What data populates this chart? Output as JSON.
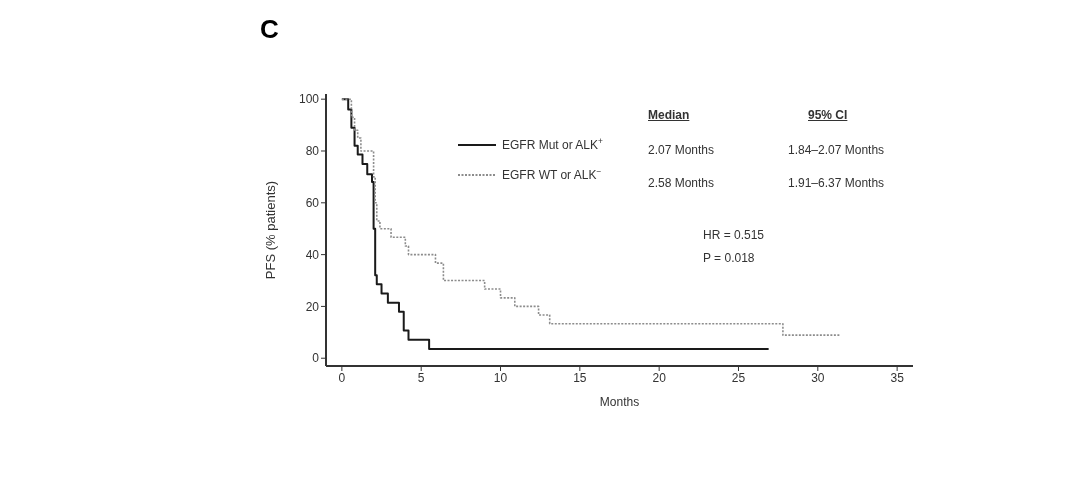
{
  "chart_data": {
    "type": "step",
    "title": "C",
    "xlabel": "Months",
    "ylabel": "PFS (% patients)",
    "xlim": [
      -1,
      36
    ],
    "ylim": [
      -3,
      102
    ],
    "xticks": [
      0,
      5,
      10,
      15,
      20,
      25,
      30,
      35
    ],
    "yticks": [
      0,
      20,
      40,
      60,
      80,
      100
    ],
    "legend": "top",
    "marker": "none",
    "series": [
      {
        "name": "EGFR Mut or ALK$^{+}$",
        "color": "#1a1a1a",
        "line_style": "solid",
        "x": [
          0,
          0.4,
          0.6,
          0.8,
          1.0,
          1.3,
          1.6,
          1.9,
          2.0,
          2.1,
          2.2,
          2.5,
          2.9,
          3.6,
          3.9,
          4.2,
          5.5,
          7.9,
          26.9
        ],
        "values": [
          100,
          96,
          89,
          82,
          78.6,
          75,
          71,
          68,
          50,
          32,
          28.6,
          25,
          21.4,
          17.9,
          10.7,
          7.1,
          3.6,
          3.6,
          3.6
        ]
      },
      {
        "name": "EGFR WT or ALK$^{−}$",
        "color": "#8c8c8c",
        "line_style": "dotted",
        "x": [
          0,
          0.6,
          0.8,
          1.0,
          1.2,
          1.6,
          2.0,
          2.1,
          2.2,
          2.4,
          3.1,
          4.0,
          4.2,
          5.9,
          6.4,
          9.0,
          10.0,
          10.9,
          12.4,
          13.1,
          27.8,
          31.4
        ],
        "values": [
          100,
          93,
          88,
          85,
          80,
          80,
          70,
          60,
          53,
          50,
          46.7,
          43.3,
          40,
          36.7,
          30,
          26.7,
          23.3,
          20,
          16.7,
          13.3,
          8.9,
          8.9
        ]
      }
    ],
    "annotations": [
      "Median",
      "95% CI",
      "2.07 Months",
      "1.84–2.07 Months",
      "2.58 Months",
      "1.91–6.37 Months",
      "HR = 0.515",
      "P = 0.018"
    ]
  }
}
